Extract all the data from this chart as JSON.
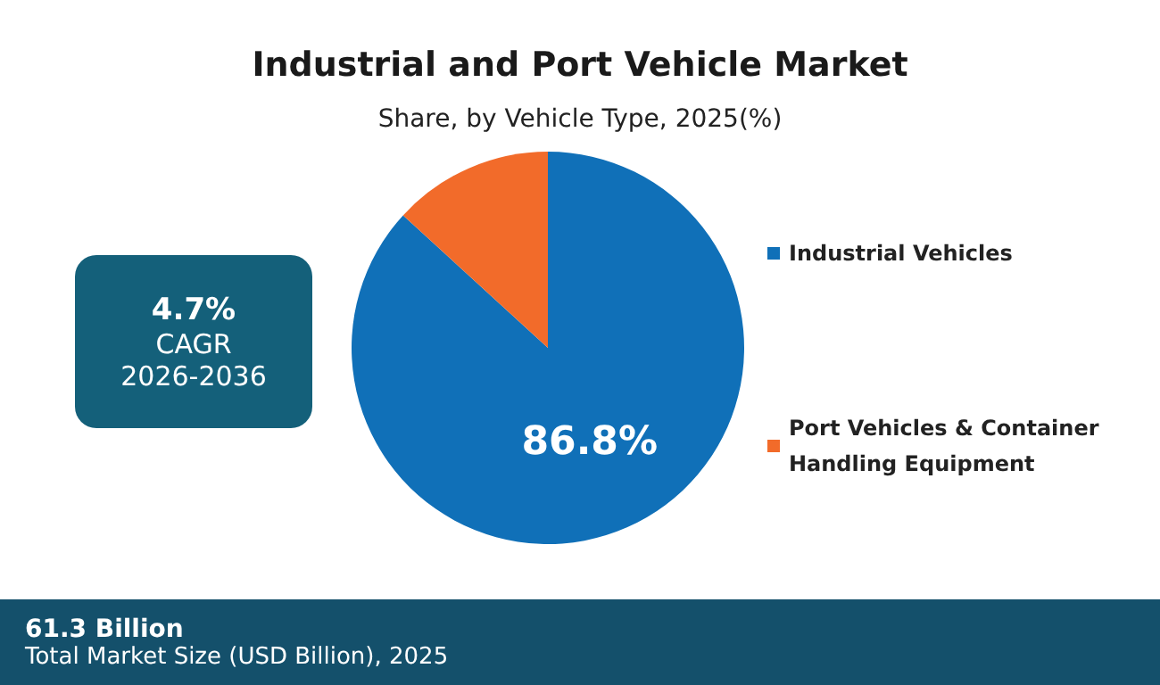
{
  "chart_data": {
    "type": "pie",
    "title": "Industrial and Port Vehicle Market",
    "subtitle": "Share, by Vehicle Type, 2025(%)",
    "categories": [
      "Industrial Vehicles",
      "Port Vehicles & Container Handling Equipment"
    ],
    "values": [
      86.8,
      13.2
    ],
    "colors": [
      "#1070b8",
      "#f26b2a"
    ],
    "value_labels": [
      "86.8%",
      null
    ],
    "legend": "right",
    "annotations": [
      "4.7%",
      "CAGR",
      "2026-2036",
      "61.3 Billion",
      "Total Market Size (USD Billion), 2025"
    ]
  }
}
